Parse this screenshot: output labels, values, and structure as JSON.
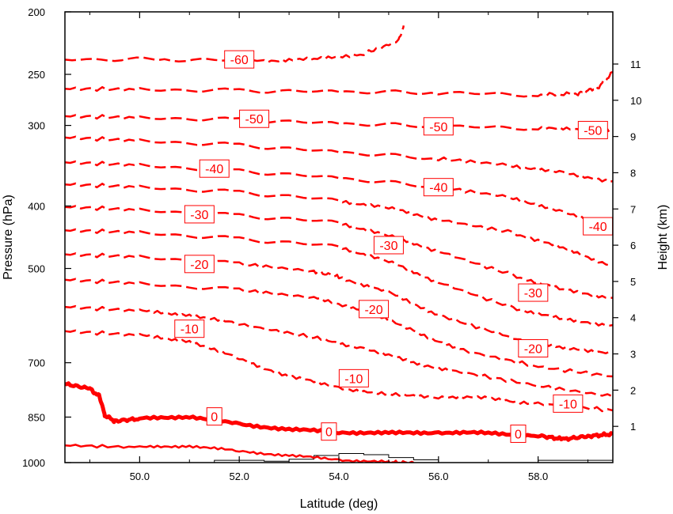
{
  "chart_data": {
    "type": "line",
    "title": "",
    "xlabel": "Latitude (deg)",
    "ylabel": "Pressure (hPa)",
    "y2label": "Height (km)",
    "xlim": [
      48.5,
      59.5
    ],
    "ylim": [
      1000,
      200
    ],
    "yscale": "log",
    "x_ticks": [
      50,
      52,
      54,
      56,
      58
    ],
    "x_tick_labels": [
      "50.0",
      "52.0",
      "54.0",
      "56.0",
      "58.0"
    ],
    "y_ticks": [
      200,
      250,
      300,
      400,
      500,
      700,
      850,
      1000
    ],
    "y_tick_labels": [
      "200",
      "250",
      "300",
      "400",
      "500",
      "700",
      "850",
      "1000"
    ],
    "y2_ticks_km": [
      1,
      2,
      3,
      4,
      5,
      6,
      7,
      8,
      9,
      10,
      11
    ],
    "y2_tick_labels": [
      "1",
      "2",
      "3",
      "4",
      "5",
      "6",
      "7",
      "8",
      "9",
      "10",
      "11"
    ],
    "line_color": "#ff0000",
    "terrain_color": "#000000",
    "isotherms": [
      {
        "level": -60,
        "x": [
          48.5,
          50.5,
          52.5,
          53.5,
          54.5,
          55.2,
          55.3
        ],
        "y": [
          237,
          237,
          238,
          237,
          232,
          222,
          210
        ]
      },
      {
        "level": -55,
        "x": [
          48.5,
          50,
          52,
          54,
          56,
          58,
          58.8,
          59.2,
          59.5
        ],
        "y": [
          263,
          264,
          265,
          266,
          267,
          269,
          268,
          262,
          248
        ]
      },
      {
        "level": -50,
        "x": [
          48.5,
          50,
          52,
          54,
          56,
          58,
          59,
          59.5
        ],
        "y": [
          290,
          292,
          294,
          298,
          301,
          303,
          305,
          306
        ]
      },
      {
        "level": -45,
        "x": [
          48.5,
          50,
          52,
          54,
          56,
          57.5,
          58.5,
          59.5
        ],
        "y": [
          313,
          317,
          322,
          330,
          338,
          346,
          356,
          366
        ]
      },
      {
        "level": -40,
        "x": [
          48.5,
          50,
          52,
          54,
          56,
          57.5,
          58.5,
          59.5
        ],
        "y": [
          342,
          346,
          353,
          362,
          374,
          388,
          410,
          428
        ]
      },
      {
        "level": -35,
        "x": [
          48.5,
          50,
          52,
          54,
          55,
          56,
          57.5,
          58.5,
          59.5
        ],
        "y": [
          370,
          374,
          381,
          392,
          403,
          420,
          440,
          465,
          495
        ]
      },
      {
        "level": -30,
        "x": [
          48.5,
          50,
          52,
          54,
          55,
          56,
          57.5,
          58.5,
          59.5
        ],
        "y": [
          401,
          406,
          414,
          424,
          445,
          470,
          512,
          540,
          555
        ]
      },
      {
        "level": -25,
        "x": [
          48.5,
          50,
          52,
          54,
          55,
          56,
          57.5,
          58.5,
          59.5
        ],
        "y": [
          436,
          440,
          450,
          462,
          488,
          525,
          575,
          600,
          612
        ]
      },
      {
        "level": -20,
        "x": [
          48.5,
          50,
          52,
          53.5,
          54,
          55,
          56,
          57.5,
          58.5,
          59.5
        ],
        "y": [
          475,
          480,
          492,
          505,
          515,
          545,
          590,
          640,
          665,
          675
        ]
      },
      {
        "level": -15,
        "x": [
          48.5,
          50,
          52,
          53.5,
          54.5,
          55.5,
          56.5,
          58,
          59.5
        ],
        "y": [
          520,
          528,
          540,
          555,
          580,
          625,
          670,
          710,
          735
        ]
      },
      {
        "level": -10,
        "x": [
          48.5,
          50,
          51,
          52,
          53.5,
          54.5,
          55.5,
          56.5,
          58,
          59.5
        ],
        "y": [
          573,
          582,
          590,
          610,
          640,
          665,
          700,
          725,
          760,
          790
        ]
      },
      {
        "level": -5,
        "x": [
          48.5,
          50,
          51,
          52,
          53,
          54,
          55,
          56,
          57,
          58,
          59.5
        ],
        "y": [
          625,
          635,
          648,
          690,
          735,
          765,
          785,
          790,
          795,
          810,
          830
        ]
      },
      {
        "level": 0,
        "x": [
          48.5,
          49,
          49.2,
          49.3,
          49.5,
          50,
          51,
          52,
          53,
          54,
          55,
          56,
          57,
          58,
          58.5,
          59,
          59.5
        ],
        "y": [
          755,
          768,
          790,
          845,
          862,
          855,
          848,
          872,
          888,
          897,
          900,
          898,
          900,
          908,
          920,
          910,
          903
        ]
      },
      {
        "level": 0,
        "x": [
          48.5,
          50,
          51,
          52,
          53,
          54,
          55,
          55.5
        ],
        "y": [
          940,
          947,
          942,
          960,
          975,
          990,
          998,
          1000
        ]
      }
    ],
    "terrain": {
      "x": [
        48.5,
        51.3,
        51.5,
        52.5,
        53,
        53.5,
        54,
        54.5,
        55,
        55.5,
        56,
        57.2,
        58,
        59.5
      ],
      "y": [
        1000,
        1000,
        992,
        995,
        988,
        975,
        968,
        972,
        982,
        990,
        1000,
        1000,
        992,
        992
      ]
    },
    "labels": [
      {
        "text": "-60",
        "x": 52.0,
        "y": 237
      },
      {
        "text": "-50",
        "x": 52.3,
        "y": 293
      },
      {
        "text": "-50",
        "x": 56.0,
        "y": 301
      },
      {
        "text": "-50",
        "x": 59.1,
        "y": 305
      },
      {
        "text": "-40",
        "x": 51.5,
        "y": 350
      },
      {
        "text": "-40",
        "x": 56.0,
        "y": 374
      },
      {
        "text": "-40",
        "x": 59.2,
        "y": 430
      },
      {
        "text": "-30",
        "x": 51.2,
        "y": 412
      },
      {
        "text": "-30",
        "x": 55.0,
        "y": 460
      },
      {
        "text": "-30",
        "x": 57.9,
        "y": 545
      },
      {
        "text": "-20",
        "x": 51.2,
        "y": 492
      },
      {
        "text": "-20",
        "x": 54.7,
        "y": 578
      },
      {
        "text": "-20",
        "x": 57.9,
        "y": 665
      },
      {
        "text": "-10",
        "x": 51.0,
        "y": 620
      },
      {
        "text": "-10",
        "x": 54.3,
        "y": 740
      },
      {
        "text": "-10",
        "x": 58.6,
        "y": 810
      },
      {
        "text": "0",
        "x": 51.5,
        "y": 848
      },
      {
        "text": "0",
        "x": 53.8,
        "y": 895
      },
      {
        "text": "0",
        "x": 57.6,
        "y": 902
      }
    ]
  }
}
